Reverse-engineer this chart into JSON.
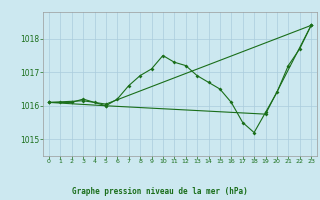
{
  "title": "Graphe pression niveau de la mer (hPa)",
  "bg_color": "#cce8f0",
  "grid_color": "#aaccdd",
  "line_color": "#1a6e1a",
  "xlim": [
    -0.5,
    23.5
  ],
  "ylim": [
    1014.5,
    1018.8
  ],
  "yticks": [
    1015,
    1016,
    1017,
    1018
  ],
  "xticks": [
    0,
    1,
    2,
    3,
    4,
    5,
    6,
    7,
    8,
    9,
    10,
    11,
    12,
    13,
    14,
    15,
    16,
    17,
    18,
    19,
    20,
    21,
    22,
    23
  ],
  "series1": {
    "x": [
      0,
      1,
      2,
      3,
      4,
      5,
      6,
      7,
      8,
      9,
      10,
      11,
      12,
      13,
      14,
      15,
      16,
      17,
      18,
      19,
      20,
      21,
      22,
      23
    ],
    "y": [
      1016.1,
      1016.1,
      1016.1,
      1016.2,
      1016.1,
      1016.0,
      1016.2,
      1016.6,
      1016.9,
      1017.1,
      1017.5,
      1017.3,
      1017.2,
      1016.9,
      1016.7,
      1016.5,
      1016.1,
      1015.5,
      1015.2,
      1015.8,
      1016.4,
      1017.2,
      1017.7,
      1018.4
    ]
  },
  "series2": {
    "x": [
      0,
      3,
      5,
      23
    ],
    "y": [
      1016.1,
      1016.15,
      1016.05,
      1018.4
    ]
  },
  "series3": {
    "x": [
      0,
      5,
      19,
      23
    ],
    "y": [
      1016.1,
      1016.0,
      1015.75,
      1018.4
    ]
  }
}
